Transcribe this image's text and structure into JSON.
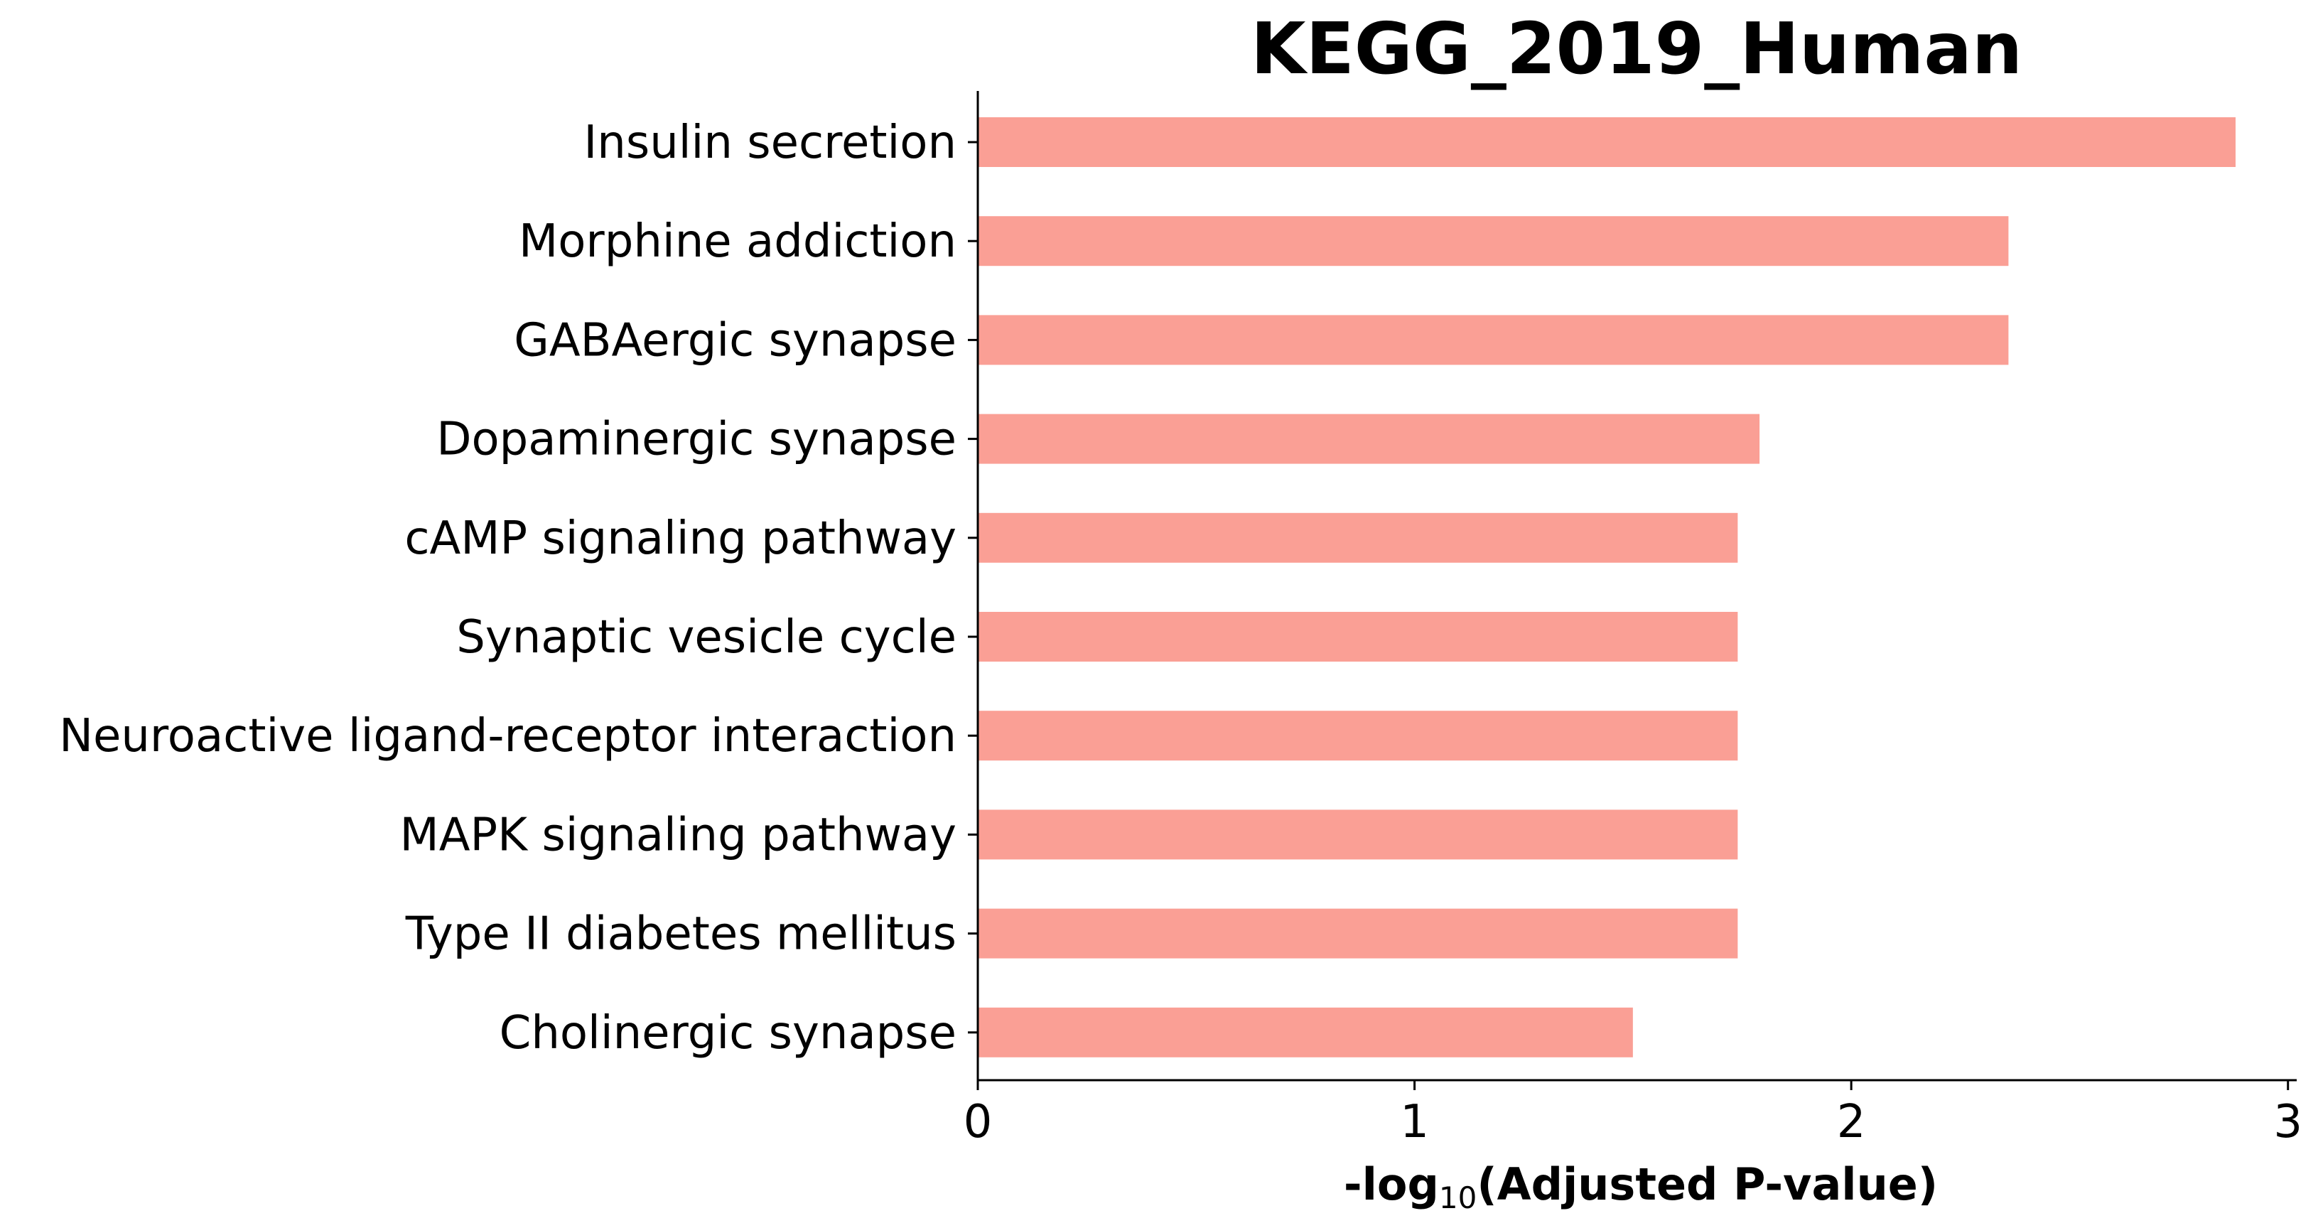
{
  "chart_data": {
    "type": "bar",
    "orientation": "horizontal",
    "title": "KEGG_2019_Human",
    "xlabel_prefix": "-log",
    "xlabel_subscript": "10",
    "xlabel_suffix": "(Adjusted P-value)",
    "ylabel": "",
    "categories": [
      "Insulin secretion",
      "Morphine addiction",
      "GABAergic synapse",
      "Dopaminergic synapse",
      "cAMP signaling pathway",
      "Synaptic vesicle cycle",
      "Neuroactive ligand-receptor interaction",
      "MAPK signaling pathway",
      "Type II diabetes mellitus",
      "Cholinergic synapse"
    ],
    "values": [
      2.88,
      2.36,
      2.36,
      1.79,
      1.74,
      1.74,
      1.74,
      1.74,
      1.74,
      1.5
    ],
    "xlim": [
      0,
      3.02
    ],
    "xticks": [
      0,
      1,
      2,
      3
    ],
    "grid": false,
    "legend": "none",
    "bar_color": "#fa9f95"
  }
}
